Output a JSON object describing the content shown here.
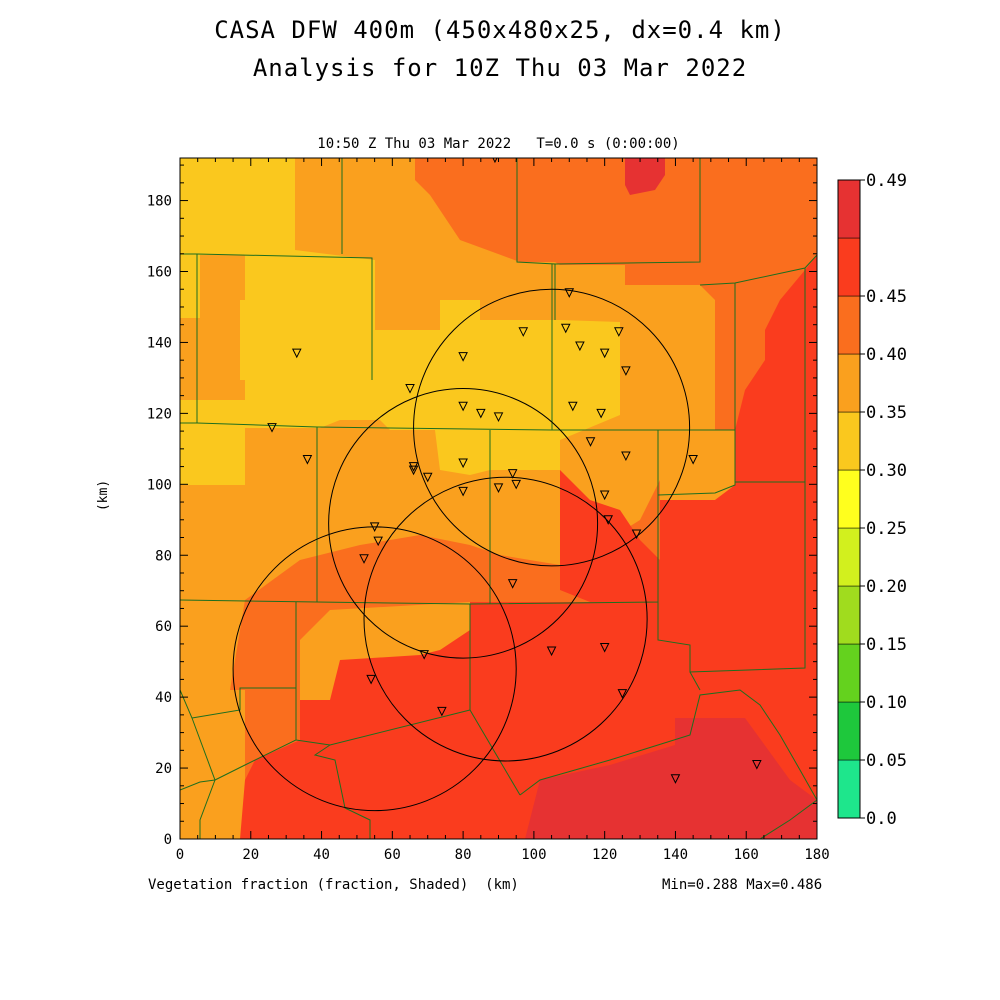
{
  "title_line1": "CASA DFW 400m (450x480x25, dx=0.4 km)",
  "title_line2": "Analysis for 10Z Thu 03 Mar 2022",
  "subtitle": "10:50 Z Thu 03 Mar 2022   T=0.0 s (0:00:00)",
  "x_axis": {
    "label": "Vegetation fraction (fraction, Shaded)  (km)",
    "ticks": [
      0,
      20,
      40,
      60,
      80,
      100,
      120,
      140,
      160,
      180
    ],
    "range": [
      0,
      180
    ]
  },
  "y_axis": {
    "label": "(km)",
    "ticks": [
      0,
      20,
      40,
      60,
      80,
      100,
      120,
      140,
      160,
      180
    ],
    "range": [
      0,
      192
    ]
  },
  "minmax": "Min=0.288 Max=0.486",
  "colorbar": {
    "labels": [
      "0.0",
      "0.05",
      "0.10",
      "0.15",
      "0.20",
      "0.25",
      "0.30",
      "0.35",
      "0.40",
      "0.45",
      "0.49"
    ],
    "colors": [
      "#1ee68c",
      "#1ec83c",
      "#64d21e",
      "#a0dc1e",
      "#d2f01e",
      "#ffff1e",
      "#fac81e",
      "#faa01e",
      "#fa6e1e",
      "#fa3c1e",
      "#e63232"
    ]
  },
  "field_colors": {
    "c025": "#fac81e",
    "c030": "#faa01e",
    "c035": "#fa6e1e",
    "c040": "#fa3c1e",
    "c045": "#e63232",
    "county_lines": "#1e6e1e"
  },
  "radars": [
    {
      "cx": 105,
      "cy": 116,
      "r": 39
    },
    {
      "cx": 80,
      "cy": 89,
      "r": 38
    },
    {
      "cx": 55,
      "cy": 48,
      "r": 40
    },
    {
      "cx": 92,
      "cy": 62,
      "r": 40
    }
  ],
  "stations": [
    [
      89,
      192
    ],
    [
      110,
      154
    ],
    [
      97,
      143
    ],
    [
      109,
      144
    ],
    [
      113,
      139
    ],
    [
      124,
      143
    ],
    [
      120,
      137
    ],
    [
      126,
      132
    ],
    [
      80,
      136
    ],
    [
      33,
      137
    ],
    [
      65,
      127
    ],
    [
      80,
      122
    ],
    [
      85,
      120
    ],
    [
      90,
      119
    ],
    [
      111,
      122
    ],
    [
      119,
      120
    ],
    [
      26,
      116
    ],
    [
      36,
      107
    ],
    [
      66,
      105
    ],
    [
      66,
      104
    ],
    [
      70,
      102
    ],
    [
      80,
      106
    ],
    [
      94,
      103
    ],
    [
      95,
      100
    ],
    [
      90,
      99
    ],
    [
      80,
      98
    ],
    [
      116,
      112
    ],
    [
      126,
      108
    ],
    [
      145,
      107
    ],
    [
      120,
      97
    ],
    [
      121,
      90
    ],
    [
      129,
      86
    ],
    [
      55,
      88
    ],
    [
      56,
      84
    ],
    [
      52,
      79
    ],
    [
      94,
      72
    ],
    [
      69,
      52
    ],
    [
      54,
      45
    ],
    [
      74,
      36
    ],
    [
      105,
      53
    ],
    [
      120,
      54
    ],
    [
      125,
      41
    ],
    [
      140,
      17
    ],
    [
      163,
      21
    ]
  ]
}
